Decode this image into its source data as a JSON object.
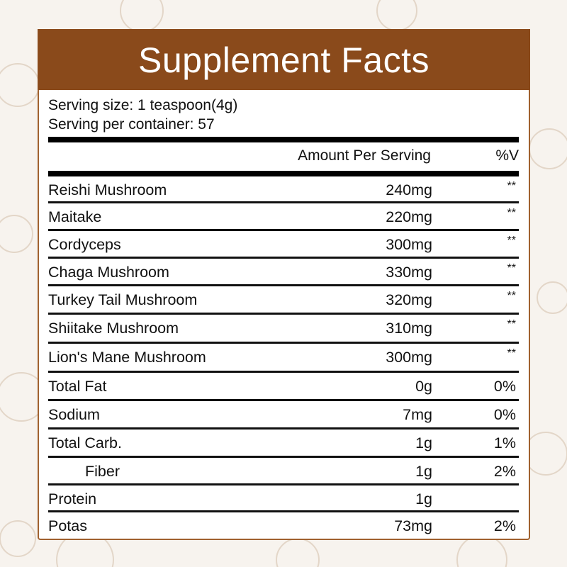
{
  "title": "Supplement Facts",
  "serving_size": "Serving size: 1 teaspoon(4g)",
  "serving_per_container": "Serving per container: 57",
  "columns": {
    "amount": "Amount Per Serving",
    "dv": "%V"
  },
  "rows": [
    {
      "name": "Reishi Mushroom",
      "amount": "240mg",
      "dv": "**"
    },
    {
      "name": "Maitake",
      "amount": "220mg",
      "dv": "**"
    },
    {
      "name": "Cordyceps",
      "amount": "300mg",
      "dv": "**"
    },
    {
      "name": "Chaga Mushroom",
      "amount": "330mg",
      "dv": "**"
    },
    {
      "name": "Turkey Tail Mushroom",
      "amount": "320mg",
      "dv": "**"
    },
    {
      "name": "Shiitake Mushroom",
      "amount": "310mg",
      "dv": "**"
    },
    {
      "name": "Lion's Mane Mushroom",
      "amount": "300mg",
      "dv": "**"
    },
    {
      "name": "Total Fat",
      "amount": "0g",
      "dv": "0%"
    },
    {
      "name": "Sodium",
      "amount": "7mg",
      "dv": "0%"
    },
    {
      "name": "Total Carb.",
      "amount": "1g",
      "dv": "1%"
    },
    {
      "name": "Fiber",
      "amount": "1g",
      "dv": "2%",
      "indent": true
    },
    {
      "name": "Protein",
      "amount": "1g",
      "dv": ""
    },
    {
      "name": "Potas",
      "amount": "73mg",
      "dv": "2%"
    }
  ],
  "colors": {
    "header": "#8a4a1b",
    "border": "#a0612f",
    "background": "#f7f3ee"
  }
}
